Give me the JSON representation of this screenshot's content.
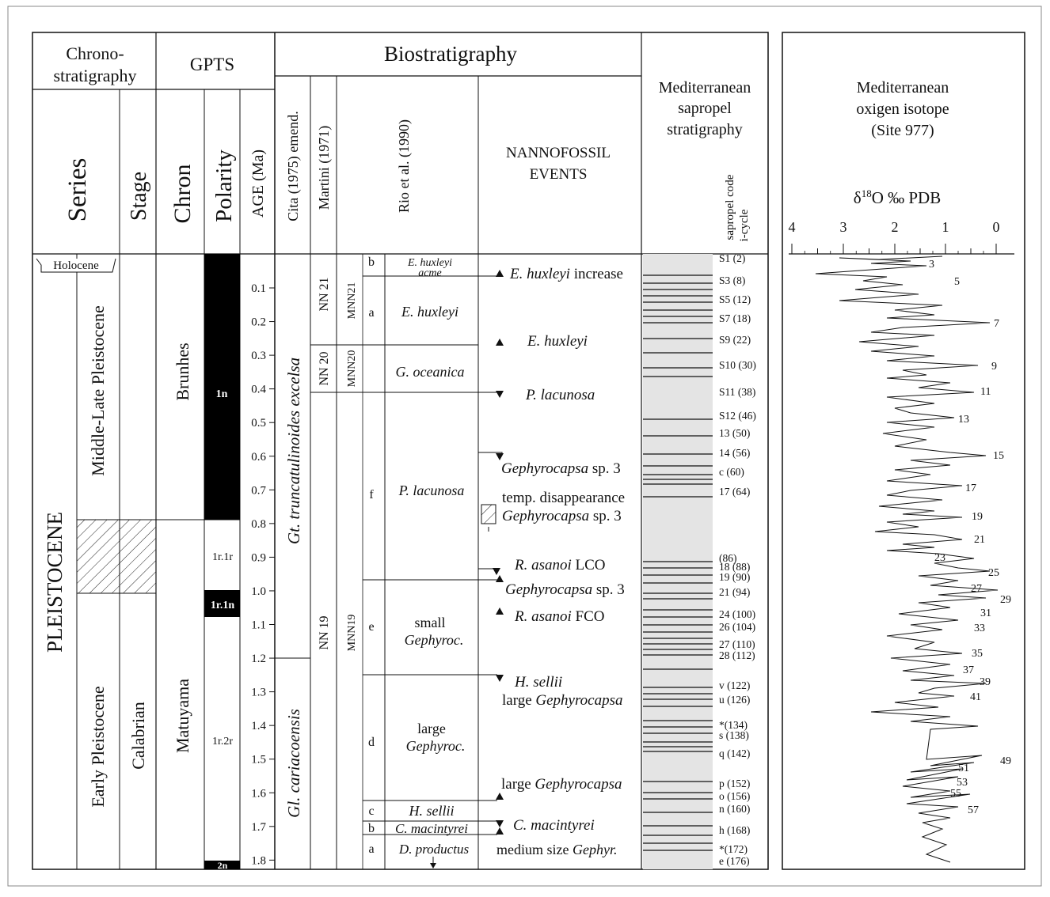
{
  "headers": {
    "chronostratigraphy": [
      "Chrono-",
      "stratigraphy"
    ],
    "gpts": "GPTS",
    "biostratigraphy": "Biostratigraphy",
    "series": "Series",
    "stage": "Stage",
    "chron": "Chron",
    "polarity": "Polarity",
    "age": "AGE (Ma)",
    "cita": "Cita (1975) emend.",
    "martini": "Martini (1971)",
    "rio": "Rio et al. (1990)",
    "events": [
      "NANNOFOSSIL",
      "EVENTS"
    ],
    "sapropel": [
      "Mediterranean",
      "sapropel",
      "stratigraphy"
    ],
    "sapropel_code": "sapropel code",
    "icycle": "i-cycle"
  },
  "chronostratigraphy": {
    "holocene": "Holocene",
    "pleistocene": "PLEISTOCENE",
    "middle_late": "Middle-Late Pleistocene",
    "early": "Early Pleistocene",
    "calabrian": "Calabrian"
  },
  "gpts": {
    "chrons": [
      "Brunhes",
      "Matuyama"
    ],
    "polarity_labels": [
      "1n",
      "1r.1r",
      "1r.1n",
      "1r.2r",
      "2n"
    ]
  },
  "age_ticks": [
    "0.1",
    "0.2",
    "0.3",
    "0.4",
    "0.5",
    "0.6",
    "0.7",
    "0.8",
    "0.9",
    "1.0",
    "1.1",
    "1.2",
    "1.3",
    "1.4",
    "1.5",
    "1.6",
    "1.7",
    "1.8"
  ],
  "foraminifera_zones": [
    "Gt. truncatulinoides excelsa",
    "Gl. cariacoensis"
  ],
  "martini_zones": [
    "NN 21",
    "NN 20",
    "NN 19"
  ],
  "mnn_zones": [
    "MNN21",
    "MNN20",
    "MNN19"
  ],
  "rio_letters": [
    "b",
    "a",
    "f",
    "e",
    "d",
    "c",
    "b",
    "a"
  ],
  "rio_zones": [
    "E. huxleyi",
    "acme",
    "E. huxleyi",
    "G. oceanica",
    "P. lacunosa",
    "small",
    "Gephyroc.",
    "large",
    "Gephyroc.",
    "H. sellii",
    "C. macintyrei",
    "D. productus"
  ],
  "events": [
    {
      "italic": "E. huxleyi",
      "rest": " increase"
    },
    {
      "italic": "E. huxleyi",
      "rest": ""
    },
    {
      "italic": "P. lacunosa",
      "rest": ""
    },
    {
      "italic": "Gephyrocapsa",
      "rest": " sp. 3"
    },
    {
      "italic": "",
      "rest": "temp. disappearance"
    },
    {
      "italic": "Gephyrocapsa",
      "rest": " sp. 3"
    },
    {
      "italic": "R. asanoi",
      "rest": " LCO"
    },
    {
      "italic": "Gephyrocapsa",
      "rest": " sp. 3"
    },
    {
      "italic": "R. asanoi",
      "rest": " FCO"
    },
    {
      "italic": "H. sellii",
      "rest": ""
    },
    {
      "italic": "",
      "rest": "large ",
      "italic2": "Gephyrocapsa"
    },
    {
      "italic": "",
      "rest": "large ",
      "italic2": "Gephyrocapsa"
    },
    {
      "italic": "C. macintyrei",
      "rest": ""
    },
    {
      "italic": "",
      "rest": "medium size ",
      "italic2": "Gephyr."
    }
  ],
  "sapropel_labels": [
    "S1 (2)",
    "S3 (8)",
    "S5 (12)",
    "S7 (18)",
    "S9 (22)",
    "S10 (30)",
    "S11 (38)",
    "S12 (46)",
    "13 (50)",
    "14 (56)",
    "c (60)",
    "17 (64)",
    "(86)",
    "18 (88)",
    "19 (90)",
    "21 (94)",
    "24 (100)",
    "26 (104)",
    "27 (110)",
    "28 (112)",
    "v (122)",
    "u (126)",
    "*(134)",
    "s (138)",
    "q (142)",
    "p (152)",
    "o (156)",
    "n (160)",
    "h (168)",
    "*(172)",
    "e (176)"
  ],
  "isotope": {
    "title": [
      "Mediterranean",
      "oxigen isotope",
      "(Site 977)"
    ],
    "axis_label": "δ18O ‰ PDB",
    "axis_ticks": [
      "4",
      "3",
      "2",
      "1",
      "0"
    ],
    "stage_labels": [
      "3",
      "5",
      "7",
      "9",
      "11",
      "13",
      "15",
      "17",
      "19",
      "21",
      "23",
      "25",
      "27",
      "29",
      "31",
      "33",
      "35",
      "37",
      "39",
      "41",
      "49",
      "51",
      "53",
      "55",
      "57"
    ]
  },
  "colors": {
    "line": "#111111",
    "sapropel_fill": "#e4e4e4",
    "normal_polarity": "#000000"
  }
}
